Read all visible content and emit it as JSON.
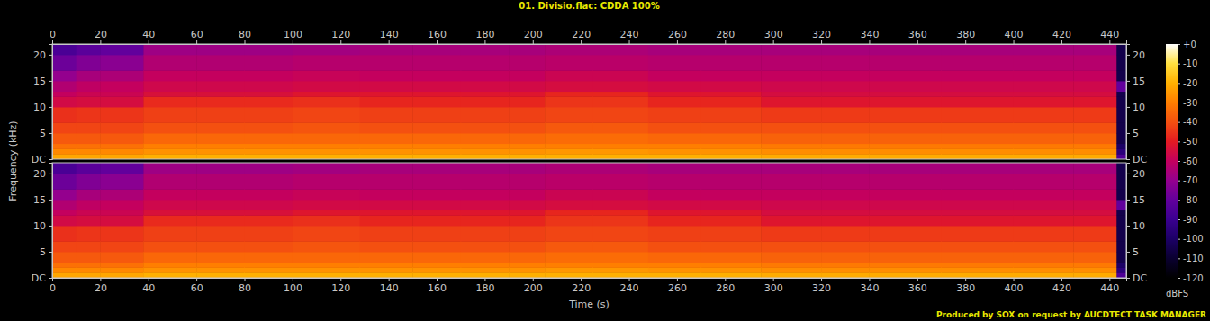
{
  "chart_data": {
    "type": "heatmap",
    "title": "01. Divisio.flac: CDDA 100%",
    "x_label": "Time (s)",
    "y_label": "Frequency (kHz)",
    "colorbar_label": "dBFS",
    "footer": "Produced by SOX on request by AUCDTECT TASK MANAGER",
    "xlim": [
      0,
      447
    ],
    "xticks": [
      0,
      20,
      40,
      60,
      80,
      100,
      120,
      140,
      160,
      180,
      200,
      220,
      240,
      260,
      280,
      300,
      320,
      340,
      360,
      380,
      400,
      420,
      440
    ],
    "ylim": [
      0,
      22.05
    ],
    "yticks": [
      {
        "value": 0,
        "label": "DC"
      },
      5,
      10,
      15,
      20
    ],
    "x_bins": [
      0,
      10,
      20,
      38,
      60,
      80,
      100,
      128,
      150,
      170,
      190,
      205,
      225,
      248,
      270,
      295,
      320,
      340,
      370,
      400,
      425,
      443,
      447
    ],
    "y_bins": [
      0,
      1,
      2,
      3,
      5,
      7,
      10,
      12,
      13,
      15,
      17,
      20,
      22.05
    ],
    "channels": [
      {
        "cells": [
          [
            -22,
            -28,
            -33,
            -38,
            -42,
            -46,
            -56,
            -60,
            -64,
            -70,
            -78,
            -86
          ],
          [
            -22,
            -28,
            -33,
            -38,
            -42,
            -45,
            -55,
            -58,
            -61,
            -66,
            -74,
            -82
          ],
          [
            -22,
            -28,
            -33,
            -38,
            -42,
            -45,
            -55,
            -58,
            -60,
            -65,
            -72,
            -80
          ],
          [
            -20,
            -26,
            -30,
            -35,
            -40,
            -43,
            -47,
            -54,
            -57,
            -60,
            -64,
            -68
          ],
          [
            -20,
            -26,
            -30,
            -35,
            -40,
            -43,
            -47,
            -54,
            -57,
            -60,
            -64,
            -68
          ],
          [
            -20,
            -26,
            -30,
            -35,
            -40,
            -43,
            -47,
            -54,
            -57,
            -60,
            -64,
            -68
          ],
          [
            -20,
            -26,
            -30,
            -35,
            -39,
            -42,
            -46,
            -52,
            -56,
            -59,
            -63,
            -67
          ],
          [
            -20,
            -26,
            -30,
            -35,
            -40,
            -43,
            -48,
            -52,
            -56,
            -60,
            -63,
            -66
          ],
          [
            -20,
            -26,
            -30,
            -35,
            -40,
            -43,
            -48,
            -52,
            -56,
            -60,
            -63,
            -66
          ],
          [
            -20,
            -26,
            -30,
            -35,
            -40,
            -43,
            -48,
            -52,
            -56,
            -60,
            -63,
            -66
          ],
          [
            -20,
            -26,
            -30,
            -35,
            -40,
            -43,
            -48,
            -52,
            -56,
            -60,
            -63,
            -66
          ],
          [
            -20,
            -25,
            -30,
            -34,
            -38,
            -42,
            -45,
            -48,
            -55,
            -58,
            -62,
            -65
          ],
          [
            -20,
            -25,
            -30,
            -34,
            -38,
            -42,
            -45,
            -48,
            -55,
            -58,
            -62,
            -65
          ],
          [
            -20,
            -26,
            -30,
            -35,
            -40,
            -43,
            -48,
            -52,
            -56,
            -60,
            -63,
            -66
          ],
          [
            -20,
            -26,
            -30,
            -35,
            -40,
            -43,
            -48,
            -52,
            -56,
            -60,
            -63,
            -66
          ],
          [
            -21,
            -27,
            -31,
            -36,
            -40,
            -44,
            -52,
            -55,
            -57,
            -60,
            -63,
            -66
          ],
          [
            -21,
            -27,
            -31,
            -36,
            -40,
            -44,
            -52,
            -55,
            -57,
            -60,
            -63,
            -66
          ],
          [
            -21,
            -27,
            -31,
            -36,
            -40,
            -44,
            -52,
            -55,
            -57,
            -60,
            -63,
            -66
          ],
          [
            -21,
            -27,
            -31,
            -36,
            -40,
            -44,
            -52,
            -55,
            -57,
            -60,
            -63,
            -66
          ],
          [
            -21,
            -27,
            -31,
            -36,
            -40,
            -44,
            -52,
            -55,
            -57,
            -60,
            -63,
            -66
          ],
          [
            -21,
            -27,
            -31,
            -36,
            -40,
            -44,
            -52,
            -55,
            -57,
            -60,
            -63,
            -66
          ],
          [
            -85,
            -95,
            -100,
            -105,
            -105,
            -105,
            -105,
            -105,
            -80,
            -105,
            -105,
            -105
          ]
        ]
      },
      {
        "cells": [
          [
            -22,
            -28,
            -33,
            -38,
            -42,
            -46,
            -56,
            -60,
            -64,
            -70,
            -78,
            -86
          ],
          [
            -22,
            -28,
            -33,
            -38,
            -42,
            -45,
            -55,
            -58,
            -61,
            -66,
            -74,
            -82
          ],
          [
            -22,
            -28,
            -33,
            -38,
            -42,
            -45,
            -55,
            -58,
            -60,
            -65,
            -72,
            -80
          ],
          [
            -20,
            -26,
            -30,
            -35,
            -40,
            -43,
            -47,
            -54,
            -57,
            -60,
            -64,
            -68
          ],
          [
            -20,
            -26,
            -30,
            -35,
            -40,
            -43,
            -47,
            -54,
            -57,
            -60,
            -64,
            -68
          ],
          [
            -20,
            -26,
            -30,
            -35,
            -40,
            -43,
            -47,
            -54,
            -57,
            -60,
            -64,
            -68
          ],
          [
            -20,
            -26,
            -30,
            -35,
            -39,
            -42,
            -46,
            -52,
            -56,
            -59,
            -63,
            -67
          ],
          [
            -20,
            -26,
            -30,
            -35,
            -40,
            -43,
            -48,
            -52,
            -56,
            -60,
            -63,
            -66
          ],
          [
            -20,
            -26,
            -30,
            -35,
            -40,
            -43,
            -48,
            -52,
            -56,
            -60,
            -63,
            -66
          ],
          [
            -20,
            -26,
            -30,
            -35,
            -40,
            -43,
            -48,
            -52,
            -56,
            -60,
            -63,
            -66
          ],
          [
            -20,
            -26,
            -30,
            -35,
            -40,
            -43,
            -48,
            -52,
            -56,
            -60,
            -63,
            -66
          ],
          [
            -20,
            -25,
            -30,
            -34,
            -38,
            -42,
            -45,
            -48,
            -55,
            -58,
            -62,
            -65
          ],
          [
            -20,
            -25,
            -30,
            -34,
            -38,
            -42,
            -45,
            -48,
            -55,
            -58,
            -62,
            -65
          ],
          [
            -20,
            -26,
            -30,
            -35,
            -40,
            -43,
            -48,
            -52,
            -56,
            -60,
            -63,
            -66
          ],
          [
            -20,
            -26,
            -30,
            -35,
            -40,
            -43,
            -48,
            -52,
            -56,
            -60,
            -63,
            -66
          ],
          [
            -21,
            -27,
            -31,
            -36,
            -40,
            -44,
            -52,
            -55,
            -57,
            -60,
            -63,
            -66
          ],
          [
            -21,
            -27,
            -31,
            -36,
            -40,
            -44,
            -52,
            -55,
            -57,
            -60,
            -63,
            -66
          ],
          [
            -21,
            -27,
            -31,
            -36,
            -40,
            -44,
            -52,
            -55,
            -57,
            -60,
            -63,
            -66
          ],
          [
            -21,
            -27,
            -31,
            -36,
            -40,
            -44,
            -52,
            -55,
            -57,
            -60,
            -63,
            -66
          ],
          [
            -21,
            -27,
            -31,
            -36,
            -40,
            -44,
            -52,
            -55,
            -57,
            -60,
            -63,
            -66
          ],
          [
            -21,
            -27,
            -31,
            -36,
            -40,
            -44,
            -52,
            -55,
            -57,
            -60,
            -63,
            -66
          ],
          [
            -85,
            -95,
            -100,
            -105,
            -105,
            -105,
            -105,
            -105,
            -80,
            -105,
            -105,
            -105
          ]
        ]
      }
    ],
    "colorbar_range": [
      -120,
      0
    ],
    "colorbar_ticks": [
      {
        "value": 0,
        "label": "+0"
      },
      -10,
      -20,
      -30,
      -40,
      -50,
      -60,
      -70,
      -80,
      -90,
      -100,
      -110,
      -120
    ]
  }
}
